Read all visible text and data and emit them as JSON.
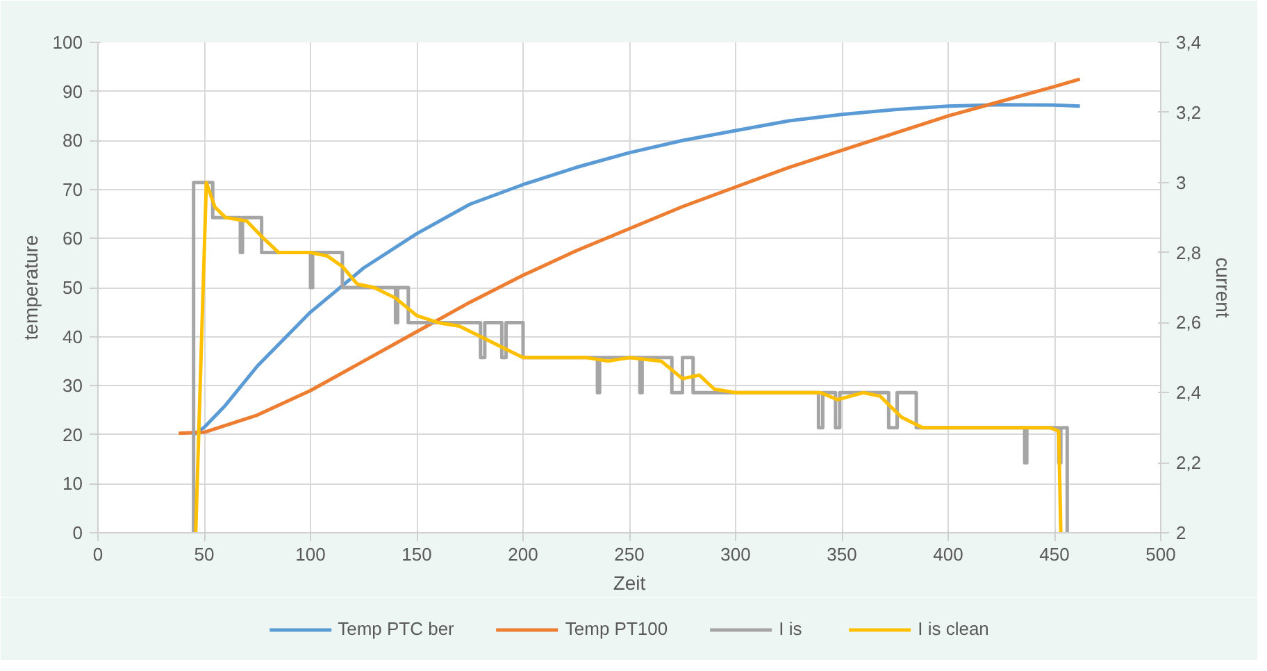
{
  "chart_data": {
    "type": "line",
    "xlabel": "Zeit",
    "ylabel": "temperature",
    "y2label": "current",
    "xlim": [
      0,
      500
    ],
    "xticks": [
      0,
      50,
      100,
      150,
      200,
      250,
      300,
      350,
      400,
      450,
      500
    ],
    "ylim": [
      0,
      100
    ],
    "yticks": [
      0,
      10,
      20,
      30,
      40,
      50,
      60,
      70,
      80,
      90,
      100
    ],
    "y2lim": [
      2,
      3.4
    ],
    "y2ticks": [
      {
        "value": 2,
        "label": "2"
      },
      {
        "value": 2.2,
        "label": "2,2"
      },
      {
        "value": 2.4,
        "label": "2,4"
      },
      {
        "value": 2.6,
        "label": "2,6"
      },
      {
        "value": 2.8,
        "label": "2,8"
      },
      {
        "value": 3,
        "label": "3"
      },
      {
        "value": 3.2,
        "label": "3,2"
      },
      {
        "value": 3.4,
        "label": "3,4"
      }
    ],
    "grid": true,
    "legend": "bottom",
    "marker": "none",
    "line_style": "solid",
    "series": [
      {
        "name": "Temp PTC ber",
        "color": "#5b9bd5",
        "x": [
          45,
          50,
          60,
          75,
          100,
          125,
          150,
          175,
          200,
          225,
          250,
          275,
          300,
          325,
          350,
          375,
          400,
          425,
          450,
          462
        ],
        "values": [
          20,
          21.5,
          26,
          34,
          45,
          54,
          61,
          67,
          71,
          74.5,
          77.5,
          80,
          82,
          84,
          85.3,
          86.3,
          87,
          87.3,
          87.2,
          87
        ]
      },
      {
        "name": "Temp PT100",
        "color": "#ed7d31",
        "x": [
          38,
          50,
          75,
          100,
          125,
          150,
          175,
          200,
          225,
          250,
          275,
          300,
          325,
          350,
          375,
          400,
          425,
          450,
          462
        ],
        "values": [
          20.3,
          20.5,
          24,
          29,
          35,
          41,
          47,
          52.5,
          57.5,
          62,
          66.5,
          70.5,
          74.5,
          78,
          81.5,
          85,
          88,
          91,
          92.5
        ]
      },
      {
        "name": "I is",
        "color": "#a5a5a5",
        "axis": "y2",
        "x": [
          45,
          45,
          54,
          54,
          67,
          67,
          68,
          68,
          77,
          77,
          100,
          100,
          101,
          101,
          115,
          115,
          140,
          140,
          141,
          141,
          146,
          146,
          180,
          180,
          182,
          182,
          190,
          190,
          192,
          192,
          200,
          200,
          235,
          235,
          236,
          236,
          255,
          255,
          256,
          256,
          270,
          270,
          275,
          275,
          280,
          280,
          293,
          293,
          339,
          339,
          341,
          341,
          347,
          347,
          349,
          349,
          372,
          372,
          376,
          376,
          385,
          385,
          389,
          389,
          436,
          436,
          437,
          437,
          452,
          452,
          453,
          453,
          456,
          456
        ],
        "values": [
          2,
          3,
          3,
          2.9,
          2.9,
          2.8,
          2.8,
          2.9,
          2.9,
          2.8,
          2.8,
          2.7,
          2.7,
          2.8,
          2.8,
          2.7,
          2.7,
          2.6,
          2.6,
          2.7,
          2.7,
          2.6,
          2.6,
          2.5,
          2.5,
          2.6,
          2.6,
          2.5,
          2.5,
          2.6,
          2.6,
          2.5,
          2.5,
          2.4,
          2.4,
          2.5,
          2.5,
          2.4,
          2.4,
          2.5,
          2.5,
          2.4,
          2.4,
          2.5,
          2.5,
          2.4,
          2.4,
          2.4,
          2.4,
          2.3,
          2.3,
          2.4,
          2.4,
          2.3,
          2.3,
          2.4,
          2.4,
          2.3,
          2.3,
          2.4,
          2.4,
          2.3,
          2.3,
          2.3,
          2.3,
          2.2,
          2.2,
          2.3,
          2.3,
          2.2,
          2.2,
          2.3,
          2.3,
          2
        ]
      },
      {
        "name": "I is clean",
        "color": "#ffc000",
        "axis": "y2",
        "x": [
          46,
          51,
          55,
          60,
          70,
          78,
          85,
          100,
          108,
          115,
          122,
          130,
          140,
          150,
          160,
          170,
          180,
          190,
          200,
          230,
          240,
          250,
          265,
          275,
          283,
          290,
          300,
          340,
          348,
          360,
          368,
          378,
          388,
          440,
          448,
          452,
          453
        ],
        "values": [
          2,
          3,
          2.93,
          2.9,
          2.89,
          2.84,
          2.8,
          2.8,
          2.79,
          2.76,
          2.71,
          2.7,
          2.67,
          2.62,
          2.6,
          2.59,
          2.56,
          2.53,
          2.5,
          2.5,
          2.49,
          2.5,
          2.49,
          2.44,
          2.45,
          2.41,
          2.4,
          2.4,
          2.38,
          2.4,
          2.39,
          2.33,
          2.3,
          2.3,
          2.3,
          2.29,
          2
        ]
      }
    ]
  }
}
